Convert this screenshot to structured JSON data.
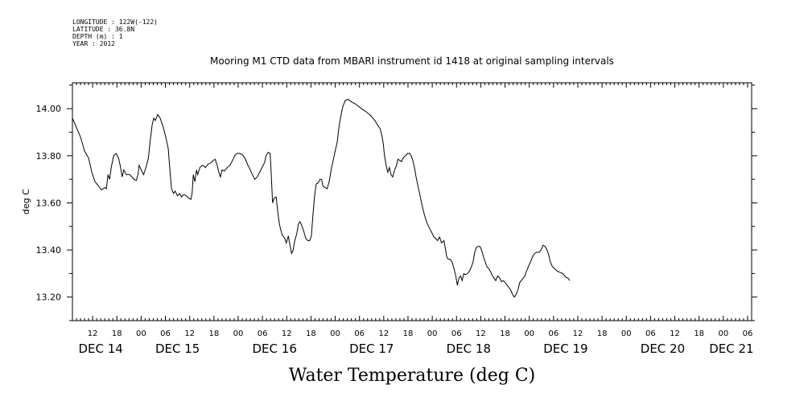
{
  "header": {
    "longitude": "LONGITUDE : 122W(-122)",
    "latitude": "LATITUDE : 36.8N",
    "depth": "DEPTH (m) : 1",
    "year": "YEAR : 2012"
  },
  "chart_data": {
    "type": "line",
    "title": "Mooring M1 CTD data from MBARI instrument id 1418 at original sampling intervals",
    "xlabel": "Water Temperature (deg C)",
    "ylabel": "deg C",
    "x_unit": "hours since DEC 14 00:00",
    "xlim": [
      7,
      175
    ],
    "ylim": [
      13.1,
      14.11
    ],
    "yticks": [
      13.2,
      13.4,
      13.6,
      13.8,
      14.0
    ],
    "ytick_labels": [
      "13.20",
      "13.40",
      "13.60",
      "13.80",
      "14.00"
    ],
    "hour_labels": [
      {
        "x": 12,
        "label": "12"
      },
      {
        "x": 18,
        "label": "18"
      },
      {
        "x": 24,
        "label": "00"
      },
      {
        "x": 30,
        "label": "06"
      },
      {
        "x": 36,
        "label": "12"
      },
      {
        "x": 42,
        "label": "18"
      },
      {
        "x": 48,
        "label": "00"
      },
      {
        "x": 54,
        "label": "06"
      },
      {
        "x": 60,
        "label": "12"
      },
      {
        "x": 66,
        "label": "18"
      },
      {
        "x": 72,
        "label": "00"
      },
      {
        "x": 78,
        "label": "06"
      },
      {
        "x": 84,
        "label": "12"
      },
      {
        "x": 90,
        "label": "18"
      },
      {
        "x": 96,
        "label": "00"
      },
      {
        "x": 102,
        "label": "06"
      },
      {
        "x": 108,
        "label": "12"
      },
      {
        "x": 114,
        "label": "18"
      },
      {
        "x": 120,
        "label": "00"
      },
      {
        "x": 126,
        "label": "06"
      },
      {
        "x": 132,
        "label": "12"
      },
      {
        "x": 138,
        "label": "18"
      },
      {
        "x": 144,
        "label": "00"
      },
      {
        "x": 150,
        "label": "06"
      },
      {
        "x": 156,
        "label": "12"
      },
      {
        "x": 162,
        "label": "18"
      },
      {
        "x": 168,
        "label": "00"
      },
      {
        "x": 174,
        "label": "06"
      }
    ],
    "day_labels": [
      {
        "x": 14,
        "label": "DEC 14"
      },
      {
        "x": 33,
        "label": "DEC 15"
      },
      {
        "x": 57,
        "label": "DEC 16"
      },
      {
        "x": 81,
        "label": "DEC 17"
      },
      {
        "x": 105,
        "label": "DEC 18"
      },
      {
        "x": 129,
        "label": "DEC 19"
      },
      {
        "x": 153,
        "label": "DEC 20"
      },
      {
        "x": 170,
        "label": "DEC 21"
      }
    ],
    "series": [
      {
        "values": [
          [
            7.0,
            13.96
          ],
          [
            8.0,
            13.92
          ],
          [
            9.0,
            13.88
          ],
          [
            10.0,
            13.82
          ],
          [
            11.0,
            13.79
          ],
          [
            11.8,
            13.73
          ],
          [
            12.6,
            13.69
          ],
          [
            13.5,
            13.67
          ],
          [
            14.2,
            13.655
          ],
          [
            15.0,
            13.665
          ],
          [
            15.4,
            13.66
          ],
          [
            15.8,
            13.72
          ],
          [
            16.2,
            13.7
          ],
          [
            16.6,
            13.75
          ],
          [
            17.2,
            13.8
          ],
          [
            17.8,
            13.81
          ],
          [
            18.4,
            13.79
          ],
          [
            18.8,
            13.76
          ],
          [
            19.3,
            13.71
          ],
          [
            19.7,
            13.74
          ],
          [
            20.3,
            13.72
          ],
          [
            21.2,
            13.72
          ],
          [
            22.2,
            13.7
          ],
          [
            22.8,
            13.695
          ],
          [
            23.2,
            13.72
          ],
          [
            23.5,
            13.76
          ],
          [
            24.0,
            13.74
          ],
          [
            24.6,
            13.72
          ],
          [
            25.2,
            13.75
          ],
          [
            25.8,
            13.79
          ],
          [
            26.2,
            13.86
          ],
          [
            26.7,
            13.93
          ],
          [
            27.1,
            13.96
          ],
          [
            27.5,
            13.95
          ],
          [
            28.1,
            13.975
          ],
          [
            28.7,
            13.96
          ],
          [
            29.5,
            13.92
          ],
          [
            30.2,
            13.87
          ],
          [
            30.7,
            13.83
          ],
          [
            31.1,
            13.74
          ],
          [
            31.5,
            13.66
          ],
          [
            32.0,
            13.64
          ],
          [
            32.4,
            13.65
          ],
          [
            33.0,
            13.63
          ],
          [
            33.5,
            13.64
          ],
          [
            34.0,
            13.625
          ],
          [
            34.5,
            13.635
          ],
          [
            35.2,
            13.63
          ],
          [
            35.7,
            13.62
          ],
          [
            36.3,
            13.615
          ],
          [
            36.6,
            13.64
          ],
          [
            36.9,
            13.72
          ],
          [
            37.3,
            13.69
          ],
          [
            37.7,
            13.74
          ],
          [
            38.0,
            13.72
          ],
          [
            38.5,
            13.75
          ],
          [
            39.2,
            13.76
          ],
          [
            39.9,
            13.75
          ],
          [
            40.6,
            13.765
          ],
          [
            41.3,
            13.77
          ],
          [
            41.8,
            13.78
          ],
          [
            42.3,
            13.785
          ],
          [
            42.8,
            13.76
          ],
          [
            43.2,
            13.73
          ],
          [
            43.6,
            13.71
          ],
          [
            44.0,
            13.74
          ],
          [
            44.6,
            13.735
          ],
          [
            45.3,
            13.75
          ],
          [
            46.0,
            13.76
          ],
          [
            46.6,
            13.78
          ],
          [
            47.1,
            13.8
          ],
          [
            47.7,
            13.81
          ],
          [
            48.3,
            13.81
          ],
          [
            49.0,
            13.805
          ],
          [
            49.7,
            13.79
          ],
          [
            50.4,
            13.76
          ],
          [
            51.0,
            13.74
          ],
          [
            51.5,
            13.72
          ],
          [
            52.1,
            13.7
          ],
          [
            52.7,
            13.71
          ],
          [
            53.3,
            13.73
          ],
          [
            53.9,
            13.75
          ],
          [
            54.5,
            13.77
          ],
          [
            54.9,
            13.8
          ],
          [
            55.4,
            13.815
          ],
          [
            55.9,
            13.81
          ],
          [
            56.2,
            13.71
          ],
          [
            56.5,
            13.6
          ],
          [
            56.9,
            13.62
          ],
          [
            57.4,
            13.625
          ],
          [
            57.8,
            13.56
          ],
          [
            58.2,
            13.51
          ],
          [
            58.6,
            13.48
          ],
          [
            59.0,
            13.46
          ],
          [
            59.5,
            13.45
          ],
          [
            59.9,
            13.43
          ],
          [
            60.4,
            13.46
          ],
          [
            60.8,
            13.42
          ],
          [
            61.2,
            13.385
          ],
          [
            61.6,
            13.4
          ],
          [
            62.0,
            13.44
          ],
          [
            62.5,
            13.47
          ],
          [
            62.9,
            13.51
          ],
          [
            63.3,
            13.52
          ],
          [
            63.8,
            13.5
          ],
          [
            64.2,
            13.48
          ],
          [
            64.7,
            13.45
          ],
          [
            65.2,
            13.44
          ],
          [
            65.7,
            13.44
          ],
          [
            66.1,
            13.46
          ],
          [
            66.5,
            13.55
          ],
          [
            66.9,
            13.63
          ],
          [
            67.3,
            13.68
          ],
          [
            67.8,
            13.685
          ],
          [
            68.2,
            13.7
          ],
          [
            68.6,
            13.7
          ],
          [
            69.0,
            13.67
          ],
          [
            69.5,
            13.665
          ],
          [
            70.0,
            13.66
          ],
          [
            70.5,
            13.69
          ],
          [
            71.0,
            13.74
          ],
          [
            71.5,
            13.78
          ],
          [
            72.0,
            13.82
          ],
          [
            72.5,
            13.86
          ],
          [
            72.9,
            13.92
          ],
          [
            73.4,
            13.97
          ],
          [
            73.9,
            14.01
          ],
          [
            74.5,
            14.035
          ],
          [
            75.1,
            14.04
          ],
          [
            75.9,
            14.03
          ],
          [
            77.0,
            14.02
          ],
          [
            78.5,
            14.0
          ],
          [
            79.8,
            13.985
          ],
          [
            80.8,
            13.97
          ],
          [
            81.8,
            13.95
          ],
          [
            82.5,
            13.93
          ],
          [
            83.1,
            13.915
          ],
          [
            83.5,
            13.89
          ],
          [
            83.9,
            13.85
          ],
          [
            84.2,
            13.8
          ],
          [
            84.6,
            13.76
          ],
          [
            85.0,
            13.73
          ],
          [
            85.4,
            13.75
          ],
          [
            85.8,
            13.72
          ],
          [
            86.2,
            13.71
          ],
          [
            86.7,
            13.74
          ],
          [
            87.1,
            13.755
          ],
          [
            87.5,
            13.785
          ],
          [
            88.0,
            13.78
          ],
          [
            88.4,
            13.775
          ],
          [
            88.8,
            13.79
          ],
          [
            89.3,
            13.8
          ],
          [
            89.9,
            13.81
          ],
          [
            90.4,
            13.81
          ],
          [
            90.8,
            13.8
          ],
          [
            91.2,
            13.78
          ],
          [
            91.6,
            13.75
          ],
          [
            92.0,
            13.71
          ],
          [
            92.5,
            13.67
          ],
          [
            93.0,
            13.63
          ],
          [
            93.6,
            13.58
          ],
          [
            94.2,
            13.54
          ],
          [
            94.8,
            13.51
          ],
          [
            95.4,
            13.49
          ],
          [
            96.0,
            13.47
          ],
          [
            96.4,
            13.455
          ],
          [
            96.8,
            13.45
          ],
          [
            97.3,
            13.44
          ],
          [
            97.8,
            13.455
          ],
          [
            98.3,
            13.43
          ],
          [
            98.9,
            13.44
          ],
          [
            99.3,
            13.4
          ],
          [
            99.6,
            13.37
          ],
          [
            100.0,
            13.36
          ],
          [
            100.5,
            13.36
          ],
          [
            101.0,
            13.345
          ],
          [
            101.4,
            13.32
          ],
          [
            101.8,
            13.29
          ],
          [
            102.2,
            13.25
          ],
          [
            102.6,
            13.28
          ],
          [
            103.0,
            13.29
          ],
          [
            103.4,
            13.27
          ],
          [
            103.8,
            13.3
          ],
          [
            104.2,
            13.295
          ],
          [
            104.7,
            13.3
          ],
          [
            105.2,
            13.31
          ],
          [
            105.7,
            13.33
          ],
          [
            106.1,
            13.35
          ],
          [
            106.5,
            13.39
          ],
          [
            106.9,
            13.41
          ],
          [
            107.3,
            13.415
          ],
          [
            107.8,
            13.415
          ],
          [
            108.2,
            13.4
          ],
          [
            108.7,
            13.37
          ],
          [
            109.1,
            13.35
          ],
          [
            109.5,
            13.33
          ],
          [
            110.0,
            13.32
          ],
          [
            110.5,
            13.305
          ],
          [
            110.9,
            13.29
          ],
          [
            111.3,
            13.28
          ],
          [
            111.7,
            13.27
          ],
          [
            112.2,
            13.29
          ],
          [
            112.7,
            13.28
          ],
          [
            113.1,
            13.265
          ],
          [
            113.6,
            13.27
          ],
          [
            114.1,
            13.26
          ],
          [
            114.5,
            13.25
          ],
          [
            115.0,
            13.24
          ],
          [
            115.4,
            13.23
          ],
          [
            115.9,
            13.21
          ],
          [
            116.3,
            13.2
          ],
          [
            116.7,
            13.21
          ],
          [
            117.2,
            13.23
          ],
          [
            117.6,
            13.26
          ],
          [
            118.0,
            13.27
          ],
          [
            118.5,
            13.28
          ],
          [
            118.9,
            13.29
          ],
          [
            119.3,
            13.31
          ],
          [
            119.8,
            13.33
          ],
          [
            120.3,
            13.35
          ],
          [
            120.8,
            13.37
          ],
          [
            121.3,
            13.385
          ],
          [
            121.8,
            13.39
          ],
          [
            122.4,
            13.39
          ],
          [
            122.9,
            13.4
          ],
          [
            123.4,
            13.42
          ],
          [
            123.9,
            13.415
          ],
          [
            124.4,
            13.4
          ],
          [
            124.8,
            13.38
          ],
          [
            125.2,
            13.35
          ],
          [
            125.7,
            13.33
          ],
          [
            126.3,
            13.32
          ],
          [
            126.9,
            13.31
          ],
          [
            127.6,
            13.305
          ],
          [
            128.3,
            13.3
          ],
          [
            129.0,
            13.285
          ],
          [
            129.6,
            13.28
          ],
          [
            130.0,
            13.27
          ]
        ]
      }
    ]
  }
}
